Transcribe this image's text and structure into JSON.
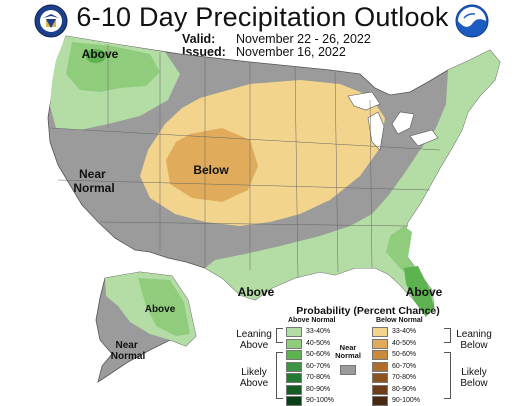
{
  "title": "6-10 Day Precipitation Outlook",
  "valid": {
    "label": "Valid:",
    "value": "November 22 - 26, 2022"
  },
  "issued": {
    "label": "Issued:",
    "value": "November 16, 2022"
  },
  "logos": {
    "left": "doc-seal-icon",
    "right": "noaa-logo-icon"
  },
  "map_labels": {
    "above_nw": "Above",
    "near_normal_west": "Near Normal",
    "below_central": "Below",
    "above_gulf": "Above",
    "above_florida": "Above",
    "above_alaska": "Above",
    "near_normal_alaska": "Near Normal"
  },
  "legend": {
    "title": "Probability (Percent Chance)",
    "above_head": "Above Normal",
    "below_head": "Below Normal",
    "near_normal": "Near Normal",
    "leaning_above": "Leaning Above",
    "likely_above": "Likely Above",
    "leaning_below": "Leaning Below",
    "likely_below": "Likely Below",
    "above_ranges": [
      "33-40%",
      "40-50%",
      "50-60%",
      "60-70%",
      "70-80%",
      "80-90%",
      "90-100%"
    ],
    "below_ranges": [
      "33-40%",
      "40-50%",
      "50-60%",
      "60-70%",
      "70-80%",
      "80-90%",
      "90-100%"
    ],
    "above_colors": [
      "#b3dda5",
      "#8fcd7d",
      "#5cb350",
      "#3b9544",
      "#247a35",
      "#145e26",
      "#0a3f18"
    ],
    "below_colors": [
      "#f2d48c",
      "#e0ac5c",
      "#c98a3c",
      "#b06c2a",
      "#8c5220",
      "#6e3c18",
      "#4a2710"
    ],
    "near_color": "#9b9b9b"
  }
}
